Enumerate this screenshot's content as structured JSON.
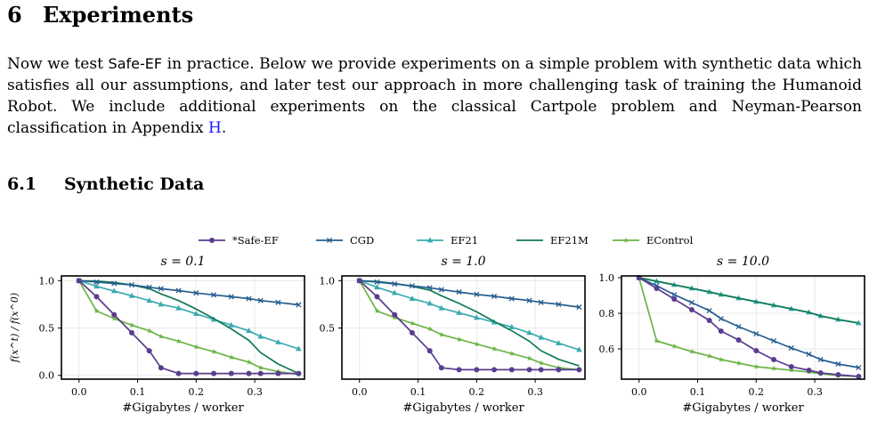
{
  "section": {
    "number": "6",
    "title": "Experiments"
  },
  "paragraph": {
    "before_method": "Now we test ",
    "method": "Safe-EF",
    "middle": " in practice. Below we provide experiments on a simple problem with synthetic data which satisfies all our assumptions, and later test our approach in more challenging task of training the Humanoid Robot. We include additional experiments on the classical Cartpole problem and Neyman-Pearson classification in Appendix ",
    "appendix_ref": "H",
    "end": "."
  },
  "subsection": {
    "number": "6.1",
    "title": "Synthetic Data"
  },
  "chart_data": {
    "type": "line",
    "legend": [
      {
        "name": "*Safe-EF",
        "color": "#5a3d8f",
        "marker": "circle"
      },
      {
        "name": "CGD",
        "color": "#255d8f",
        "marker": "x"
      },
      {
        "name": "EF21",
        "color": "#3aaab0",
        "marker": "triangle"
      },
      {
        "name": "EF21M",
        "color": "#117a55",
        "marker": "none"
      },
      {
        "name": "EControl",
        "color": "#6cb547",
        "marker": "star"
      }
    ],
    "legend_placement": "top-center",
    "ylabel": "f(x^t) / f(x^0)",
    "xlabel": "#Gigabytes / worker",
    "grid": true,
    "panels": [
      {
        "title": "s = 0.1",
        "xlim": [
          -0.03,
          0.385
        ],
        "ylim": [
          -0.04,
          1.05
        ],
        "xticks": [
          "0.0",
          "0.1",
          "0.2",
          "0.3"
        ],
        "yticks": [
          "0.0",
          "0.5",
          "1.0"
        ],
        "series": {
          "*Safe-EF": {
            "x": [
              0,
              0.03,
              0.06,
              0.09,
              0.12,
              0.14,
              0.17,
              0.2,
              0.23,
              0.26,
              0.29,
              0.31,
              0.34,
              0.375
            ],
            "y": [
              1.0,
              0.83,
              0.64,
              0.45,
              0.26,
              0.08,
              0.02,
              0.02,
              0.02,
              0.02,
              0.02,
              0.02,
              0.02,
              0.02
            ]
          },
          "CGD": {
            "x": [
              0,
              0.03,
              0.06,
              0.09,
              0.12,
              0.14,
              0.17,
              0.2,
              0.23,
              0.26,
              0.29,
              0.31,
              0.34,
              0.375
            ],
            "y": [
              1.0,
              0.985,
              0.97,
              0.955,
              0.93,
              0.915,
              0.895,
              0.87,
              0.85,
              0.83,
              0.81,
              0.79,
              0.77,
              0.745
            ]
          },
          "EF21": {
            "x": [
              0,
              0.03,
              0.06,
              0.09,
              0.12,
              0.14,
              0.17,
              0.2,
              0.23,
              0.26,
              0.29,
              0.31,
              0.34,
              0.375
            ],
            "y": [
              1.0,
              0.94,
              0.89,
              0.84,
              0.79,
              0.75,
              0.71,
              0.65,
              0.59,
              0.53,
              0.47,
              0.41,
              0.35,
              0.28
            ]
          },
          "EF21M": {
            "x": [
              0,
              0.03,
              0.06,
              0.09,
              0.12,
              0.14,
              0.17,
              0.2,
              0.23,
              0.26,
              0.29,
              0.31,
              0.34,
              0.375
            ],
            "y": [
              1.0,
              0.995,
              0.98,
              0.955,
              0.915,
              0.86,
              0.79,
              0.7,
              0.6,
              0.49,
              0.37,
              0.24,
              0.12,
              0.02
            ]
          },
          "EControl": {
            "x": [
              0,
              0.03,
              0.06,
              0.09,
              0.12,
              0.14,
              0.17,
              0.2,
              0.23,
              0.26,
              0.29,
              0.31,
              0.34,
              0.375
            ],
            "y": [
              1.0,
              0.68,
              0.6,
              0.53,
              0.47,
              0.41,
              0.36,
              0.3,
              0.25,
              0.19,
              0.14,
              0.08,
              0.04,
              0.01
            ]
          }
        }
      },
      {
        "title": "s = 1.0",
        "xlim": [
          -0.03,
          0.385
        ],
        "ylim": [
          -0.04,
          1.05
        ],
        "xticks": [
          "0.0",
          "0.1",
          "0.2",
          "0.3"
        ],
        "yticks": [
          "0.5",
          "1.0"
        ],
        "series": {
          "*Safe-EF": {
            "x": [
              0,
              0.03,
              0.06,
              0.09,
              0.12,
              0.14,
              0.17,
              0.2,
              0.23,
              0.26,
              0.29,
              0.31,
              0.34,
              0.375
            ],
            "y": [
              1.0,
              0.83,
              0.64,
              0.45,
              0.26,
              0.08,
              0.06,
              0.06,
              0.06,
              0.06,
              0.06,
              0.06,
              0.06,
              0.06
            ]
          },
          "CGD": {
            "x": [
              0,
              0.03,
              0.06,
              0.09,
              0.12,
              0.14,
              0.17,
              0.2,
              0.23,
              0.26,
              0.29,
              0.31,
              0.34,
              0.375
            ],
            "y": [
              1.0,
              0.985,
              0.965,
              0.945,
              0.925,
              0.905,
              0.88,
              0.855,
              0.835,
              0.81,
              0.79,
              0.77,
              0.75,
              0.72
            ]
          },
          "EF21": {
            "x": [
              0,
              0.03,
              0.06,
              0.09,
              0.12,
              0.14,
              0.17,
              0.2,
              0.23,
              0.26,
              0.29,
              0.31,
              0.34,
              0.375
            ],
            "y": [
              1.0,
              0.93,
              0.87,
              0.81,
              0.76,
              0.71,
              0.66,
              0.61,
              0.56,
              0.51,
              0.45,
              0.4,
              0.34,
              0.27
            ]
          },
          "EF21M": {
            "x": [
              0,
              0.03,
              0.06,
              0.09,
              0.12,
              0.14,
              0.17,
              0.2,
              0.23,
              0.26,
              0.29,
              0.31,
              0.34,
              0.375
            ],
            "y": [
              1.0,
              0.99,
              0.97,
              0.94,
              0.9,
              0.84,
              0.76,
              0.67,
              0.57,
              0.47,
              0.36,
              0.26,
              0.17,
              0.1
            ]
          },
          "EControl": {
            "x": [
              0,
              0.03,
              0.06,
              0.09,
              0.12,
              0.14,
              0.17,
              0.2,
              0.23,
              0.26,
              0.29,
              0.31,
              0.34,
              0.375
            ],
            "y": [
              1.0,
              0.68,
              0.61,
              0.55,
              0.49,
              0.43,
              0.38,
              0.33,
              0.28,
              0.23,
              0.18,
              0.13,
              0.08,
              0.06
            ]
          }
        }
      },
      {
        "title": "s = 10.0",
        "xlim": [
          -0.03,
          0.385
        ],
        "ylim": [
          0.43,
          1.01
        ],
        "xticks": [
          "0.0",
          "0.1",
          "0.2",
          "0.3"
        ],
        "yticks": [
          "0.6",
          "0.8",
          "1.0"
        ],
        "series": {
          "*Safe-EF": {
            "x": [
              0,
              0.03,
              0.06,
              0.09,
              0.12,
              0.14,
              0.17,
              0.2,
              0.23,
              0.26,
              0.29,
              0.31,
              0.34,
              0.375
            ],
            "y": [
              1.0,
              0.94,
              0.88,
              0.82,
              0.76,
              0.7,
              0.65,
              0.59,
              0.54,
              0.5,
              0.48,
              0.465,
              0.455,
              0.445
            ]
          },
          "CGD": {
            "x": [
              0,
              0.03,
              0.06,
              0.09,
              0.12,
              0.14,
              0.17,
              0.2,
              0.23,
              0.26,
              0.29,
              0.31,
              0.34,
              0.375
            ],
            "y": [
              1.0,
              0.955,
              0.905,
              0.86,
              0.815,
              0.77,
              0.725,
              0.685,
              0.645,
              0.605,
              0.57,
              0.54,
              0.515,
              0.495
            ]
          },
          "EF21": {
            "x": [
              0,
              0.03,
              0.06,
              0.09,
              0.12,
              0.14,
              0.17,
              0.2,
              0.23,
              0.26,
              0.29,
              0.31,
              0.34,
              0.375
            ],
            "y": [
              1.0,
              0.98,
              0.96,
              0.94,
              0.92,
              0.905,
              0.885,
              0.865,
              0.845,
              0.825,
              0.805,
              0.785,
              0.765,
              0.745
            ]
          },
          "EF21M": {
            "x": [
              0,
              0.03,
              0.06,
              0.09,
              0.12,
              0.14,
              0.17,
              0.2,
              0.23,
              0.26,
              0.29,
              0.31,
              0.34,
              0.375
            ],
            "y": [
              1.0,
              0.98,
              0.96,
              0.94,
              0.92,
              0.905,
              0.885,
              0.865,
              0.845,
              0.825,
              0.805,
              0.785,
              0.765,
              0.745
            ]
          },
          "EControl": {
            "x": [
              0,
              0.03,
              0.06,
              0.09,
              0.12,
              0.14,
              0.17,
              0.2,
              0.23,
              0.26,
              0.29,
              0.31,
              0.34,
              0.375
            ],
            "y": [
              1.0,
              0.645,
              0.615,
              0.585,
              0.56,
              0.54,
              0.52,
              0.5,
              0.49,
              0.48,
              0.47,
              0.46,
              0.45,
              0.445
            ]
          }
        }
      }
    ]
  }
}
